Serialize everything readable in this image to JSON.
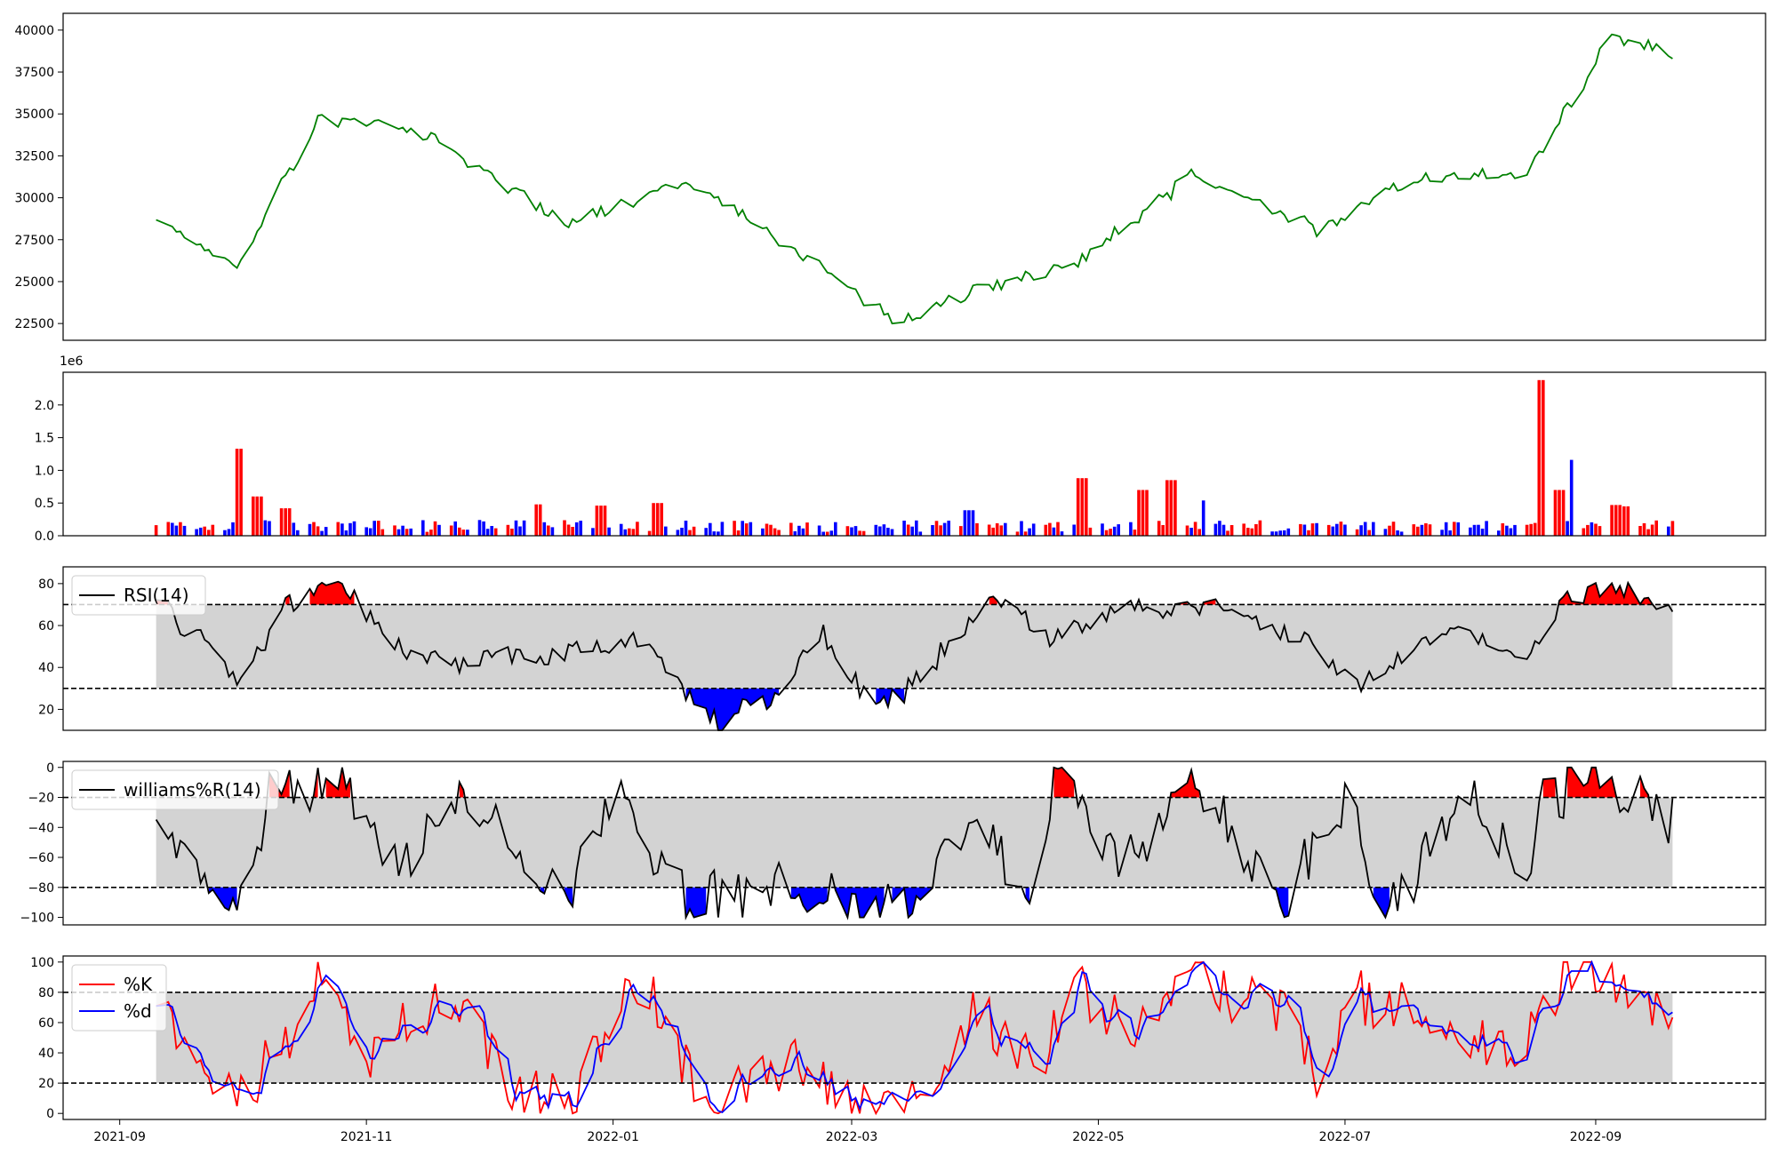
{
  "chart_data": [
    {
      "type": "line",
      "panel": "price",
      "color": "#008000",
      "ylim": [
        21500,
        41000
      ],
      "yticks": [
        22500,
        25000,
        27500,
        30000,
        32500,
        35000,
        37500,
        40000
      ],
      "ytick_labels": [
        "22500",
        "25000",
        "27500",
        "30000",
        "32500",
        "35000",
        "37500",
        "40000"
      ],
      "x_anchor_dates": [
        "2021-09-10",
        "2021-10-01",
        "2021-10-20",
        "2021-11-15",
        "2021-12-20",
        "2022-01-20",
        "2022-02-20",
        "2022-03-12",
        "2022-04-01",
        "2022-04-25",
        "2022-05-25",
        "2022-06-25",
        "2022-07-15",
        "2022-08-15",
        "2022-08-25",
        "2022-09-05",
        "2022-09-20"
      ],
      "y_anchor_values": [
        28500,
        26000,
        34800,
        34000,
        28500,
        31000,
        26000,
        22500,
        24500,
        26000,
        31500,
        28000,
        31000,
        31500,
        35500,
        39500,
        38600
      ]
    },
    {
      "type": "bar",
      "panel": "volume",
      "scale_label": "1e6",
      "ylim": [
        0,
        2.5
      ],
      "yticks": [
        0.0,
        0.5,
        1.0,
        1.5,
        2.0
      ],
      "ytick_labels": [
        "0.0",
        "0.5",
        "1.0",
        "1.5",
        "2.0"
      ],
      "up_color": "#ff0000",
      "down_color": "#0000ff",
      "spikes": [
        {
          "date": "2021-10-01",
          "value": 1.33,
          "color": "#ff0000"
        },
        {
          "date": "2021-10-03",
          "value": 0.55,
          "color": "#ff0000"
        },
        {
          "date": "2021-10-05",
          "value": 0.6,
          "color": "#ff0000"
        },
        {
          "date": "2021-10-12",
          "value": 0.42,
          "color": "#ff0000"
        },
        {
          "date": "2021-12-13",
          "value": 0.48,
          "color": "#ff0000"
        },
        {
          "date": "2021-12-29",
          "value": 0.46,
          "color": "#ff0000"
        },
        {
          "date": "2022-01-12",
          "value": 0.5,
          "color": "#ff0000"
        },
        {
          "date": "2022-03-30",
          "value": 0.39,
          "color": "#0000ff"
        },
        {
          "date": "2022-04-27",
          "value": 0.88,
          "color": "#ff0000"
        },
        {
          "date": "2022-05-12",
          "value": 0.7,
          "color": "#ff0000"
        },
        {
          "date": "2022-05-19",
          "value": 0.85,
          "color": "#ff0000"
        },
        {
          "date": "2022-05-28",
          "value": 0.54,
          "color": "#0000ff"
        },
        {
          "date": "2022-08-19",
          "value": 2.38,
          "color": "#ff0000"
        },
        {
          "date": "2022-08-21",
          "value": 0.7,
          "color": "#ff0000"
        },
        {
          "date": "2022-08-23",
          "value": 0.7,
          "color": "#ff0000"
        },
        {
          "date": "2022-08-27",
          "value": 1.16,
          "color": "#0000ff"
        },
        {
          "date": "2022-09-06",
          "value": 0.47,
          "color": "#ff0000"
        },
        {
          "date": "2022-09-09",
          "value": 0.45,
          "color": "#ff0000"
        }
      ]
    },
    {
      "type": "line",
      "panel": "rsi",
      "legend": [
        "RSI(14)"
      ],
      "ylim": [
        10,
        88
      ],
      "yticks": [
        20,
        40,
        60,
        80
      ],
      "ytick_labels": [
        "20",
        "40",
        "60",
        "80"
      ],
      "overbought": 70,
      "oversold": 30,
      "band_color": "#d3d3d3",
      "above_fill": "#ff0000",
      "below_fill": "#0000ff",
      "x_anchor_dates": [
        "2021-09-10",
        "2021-09-20",
        "2021-10-01",
        "2021-10-10",
        "2021-10-25",
        "2021-11-05",
        "2021-11-20",
        "2021-12-15",
        "2022-01-05",
        "2022-01-27",
        "2022-02-10",
        "2022-02-22",
        "2022-03-05",
        "2022-03-15",
        "2022-04-05",
        "2022-04-20",
        "2022-05-05",
        "2022-05-28",
        "2022-06-20",
        "2022-07-05",
        "2022-07-25",
        "2022-08-15",
        "2022-08-25",
        "2022-09-05",
        "2022-09-20"
      ],
      "y_anchor_values": [
        71,
        55,
        32,
        65,
        84,
        55,
        42,
        45,
        55,
        14,
        27,
        56,
        22,
        30,
        72,
        55,
        68,
        70,
        55,
        30,
        60,
        45,
        74,
        78,
        68
      ]
    },
    {
      "type": "line",
      "panel": "williams",
      "legend": [
        "williams%R(14)"
      ],
      "ylim": [
        -105,
        4
      ],
      "yticks": [
        -100,
        -80,
        -60,
        -40,
        -20,
        0
      ],
      "ytick_labels": [
        "−100",
        "−80",
        "−60",
        "−40",
        "−20",
        "0"
      ],
      "overbought": -20,
      "oversold": -80,
      "band_color": "#d3d3d3",
      "above_fill": "#ff0000",
      "below_fill": "#0000ff",
      "x_anchor_dates": [
        "2021-09-10",
        "2021-09-25",
        "2021-10-01",
        "2021-10-08",
        "2021-10-25",
        "2021-11-10",
        "2021-11-25",
        "2021-12-20",
        "2022-01-01",
        "2022-01-20",
        "2022-02-15",
        "2022-03-05",
        "2022-03-15",
        "2022-03-30",
        "2022-04-15",
        "2022-04-20",
        "2022-05-10",
        "2022-05-25",
        "2022-06-15",
        "2022-07-01",
        "2022-07-10",
        "2022-08-01",
        "2022-08-15",
        "2022-08-20",
        "2022-09-01",
        "2022-09-20"
      ],
      "y_anchor_values": [
        -39,
        -85,
        -97,
        -25,
        -8,
        -75,
        -15,
        -95,
        -15,
        -95,
        -75,
        -95,
        -90,
        -40,
        -85,
        0,
        -70,
        -10,
        -85,
        -20,
        -95,
        -20,
        -80,
        -15,
        -3,
        -38
      ]
    },
    {
      "type": "line",
      "panel": "stochastic",
      "legend": [
        "%K",
        "%d"
      ],
      "series_colors": [
        "#ff0000",
        "#0000ff"
      ],
      "ylim": [
        -4,
        104
      ],
      "yticks": [
        0,
        20,
        40,
        60,
        80,
        100
      ],
      "ytick_labels": [
        "0",
        "20",
        "40",
        "60",
        "80",
        "100"
      ],
      "overbought": 80,
      "oversold": 20,
      "band_color": "#d3d3d3",
      "x_anchor_dates": [
        "2021-09-10",
        "2021-09-25",
        "2021-10-05",
        "2021-10-20",
        "2021-11-01",
        "2021-11-20",
        "2021-12-10",
        "2021-12-25",
        "2022-01-05",
        "2022-01-27",
        "2022-02-15",
        "2022-03-05",
        "2022-03-20",
        "2022-04-01",
        "2022-04-15",
        "2022-04-25",
        "2022-05-10",
        "2022-05-25",
        "2022-06-15",
        "2022-06-25",
        "2022-07-05",
        "2022-07-20",
        "2022-08-10",
        "2022-08-20",
        "2022-09-01",
        "2022-09-20"
      ],
      "y_anchor_values": [
        62,
        22,
        18,
        93,
        35,
        78,
        10,
        20,
        85,
        8,
        30,
        8,
        12,
        70,
        30,
        90,
        50,
        88,
        62,
        16,
        78,
        62,
        40,
        82,
        95,
        65
      ]
    }
  ],
  "x_axis": {
    "ticks": [
      "2021-09",
      "2021-11",
      "2022-01",
      "2022-03",
      "2022-05",
      "2022-07",
      "2022-09"
    ],
    "range": [
      "2021-08-18",
      "2022-10-13"
    ]
  }
}
